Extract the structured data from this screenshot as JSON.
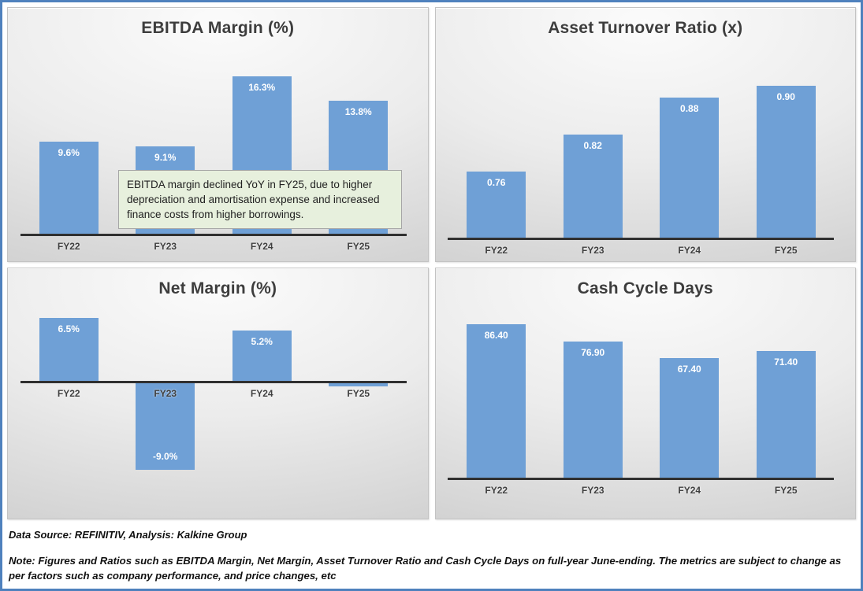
{
  "colors": {
    "bar": "#6FA0D6",
    "frame_border": "#4F81BD",
    "axis": "#303030",
    "annotation_bg": "#E7F0DD",
    "annotation_border": "#A6A6A6",
    "title_text": "#3d3d3d"
  },
  "chart_data": [
    {
      "type": "bar",
      "title": "EBITDA Margin (%)",
      "categories": [
        "FY22",
        "FY23",
        "FY24",
        "FY25"
      ],
      "values": [
        9.6,
        9.1,
        16.3,
        13.8
      ],
      "labels": [
        "9.6%",
        "9.1%",
        "16.3%",
        "13.8%"
      ],
      "ylim": [
        0,
        18.5
      ],
      "xlabel": "",
      "ylabel": "",
      "grid": false,
      "legend": "none",
      "annotation": "EBITDA margin declined YoY in FY25, due to higher depreciation and amortisation expense and increased finance costs from higher borrowings."
    },
    {
      "type": "bar",
      "title": "Asset Turnover Ratio (x)",
      "categories": [
        "FY22",
        "FY23",
        "FY24",
        "FY25"
      ],
      "values": [
        0.76,
        0.82,
        0.88,
        0.9
      ],
      "labels": [
        "0.76",
        "0.82",
        "0.88",
        "0.90"
      ],
      "ylim": [
        0.65,
        0.95
      ],
      "xlabel": "",
      "ylabel": "",
      "grid": false,
      "legend": "none"
    },
    {
      "type": "bar",
      "title": "Net Margin (%)",
      "categories": [
        "FY22",
        "FY23",
        "FY24",
        "FY25"
      ],
      "values": [
        6.5,
        -9.0,
        5.2,
        -0.5
      ],
      "labels": [
        "6.5%",
        "-9.0%",
        "5.2%",
        ""
      ],
      "ylim": [
        -12.5,
        7.5
      ],
      "xlabel": "",
      "ylabel": "",
      "grid": false,
      "legend": "none"
    },
    {
      "type": "bar",
      "title": "Cash Cycle Days",
      "categories": [
        "FY22",
        "FY23",
        "FY24",
        "FY25"
      ],
      "values": [
        86.4,
        76.9,
        67.4,
        71.4
      ],
      "labels": [
        "86.40",
        "76.90",
        "67.40",
        "71.40"
      ],
      "ylim": [
        0,
        108
      ],
      "xlabel": "",
      "ylabel": "",
      "grid": false,
      "legend": "none"
    }
  ],
  "footer": {
    "source": "Data Source: REFINITIV, Analysis: Kalkine Group",
    "note": "Note: Figures and Ratios such as EBITDA Margin, Net Margin, Asset Turnover Ratio and Cash Cycle Days on full-year June-ending. The metrics are subject to change as per factors such as company performance, and price changes, etc"
  }
}
